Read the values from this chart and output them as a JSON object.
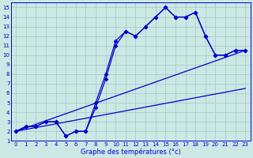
{
  "title": "Graphe des températures (°c)",
  "background_color": "#cce8e4",
  "grid_color": "#aacccc",
  "line_color": "#0000cc",
  "xlim": [
    -0.5,
    23.5
  ],
  "ylim": [
    1,
    15.5
  ],
  "xticks": [
    0,
    1,
    2,
    3,
    4,
    5,
    6,
    7,
    8,
    9,
    10,
    11,
    12,
    13,
    14,
    15,
    16,
    17,
    18,
    19,
    20,
    21,
    22,
    23
  ],
  "yticks": [
    1,
    2,
    3,
    4,
    5,
    6,
    7,
    8,
    9,
    10,
    11,
    12,
    13,
    14,
    15
  ],
  "series": [
    {
      "x": [
        0,
        1,
        2,
        3,
        4,
        5,
        6,
        7,
        8,
        9,
        10,
        11,
        12,
        13,
        14,
        15,
        16,
        17,
        18,
        19,
        20,
        21,
        22,
        23
      ],
      "y": [
        2,
        2.5,
        2.5,
        3,
        3,
        1.5,
        2,
        2,
        5,
        8,
        11.5,
        12.5,
        12,
        13,
        14,
        15,
        14,
        14,
        14.5,
        12,
        10,
        10,
        10.5,
        10.5
      ],
      "marker": "D",
      "markersize": 2.5,
      "linewidth": 0.9
    },
    {
      "x": [
        0,
        1,
        2,
        3,
        4,
        5,
        6,
        7,
        8,
        9,
        10,
        11,
        12,
        13,
        14,
        15,
        16,
        17,
        18,
        19,
        20,
        21,
        22,
        23
      ],
      "y": [
        2,
        2.5,
        2.5,
        3,
        3,
        1.5,
        2,
        2,
        4.5,
        7.5,
        11,
        12.5,
        12,
        13,
        14,
        15,
        14,
        14,
        14.5,
        12,
        10,
        10,
        10.5,
        10.5
      ],
      "marker": "D",
      "markersize": 2.5,
      "linewidth": 0.9
    },
    {
      "x": [
        0,
        23
      ],
      "y": [
        2,
        10.5
      ],
      "marker": null,
      "markersize": 0,
      "linewidth": 0.9
    },
    {
      "x": [
        0,
        23
      ],
      "y": [
        2,
        6.5
      ],
      "marker": null,
      "markersize": 0,
      "linewidth": 0.9
    }
  ],
  "xlabel_fontsize": 6.0,
  "tick_fontsize": 5.0
}
